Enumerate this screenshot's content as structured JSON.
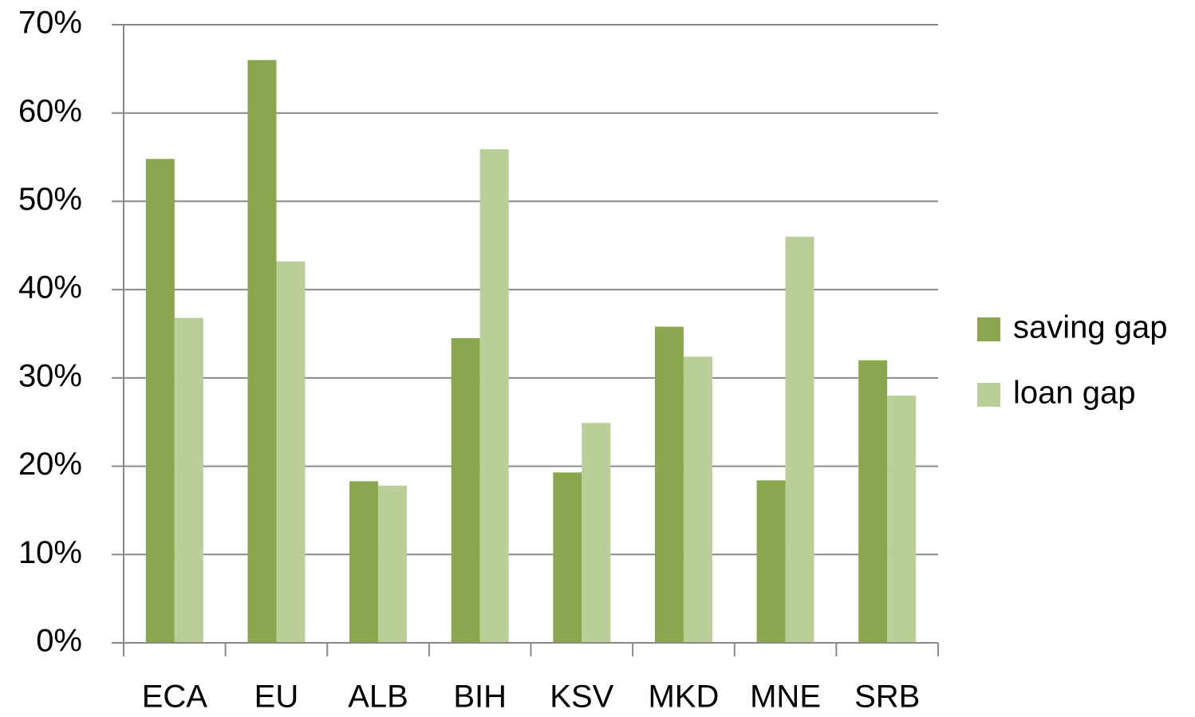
{
  "chart_data": {
    "type": "bar",
    "categories": [
      "ECA",
      "EU",
      "ALB",
      "BIH",
      "KSV",
      "MKD",
      "MNE",
      "SRB"
    ],
    "series": [
      {
        "name": "saving gap",
        "color": "#8aa64e",
        "values": [
          54.8,
          66.0,
          18.3,
          34.5,
          19.3,
          35.8,
          18.4,
          32.0
        ]
      },
      {
        "name": "loan gap",
        "color": "#bacf98",
        "values": [
          36.8,
          43.2,
          17.8,
          55.9,
          24.9,
          32.4,
          46.0,
          28.0
        ]
      }
    ],
    "ylim": [
      0,
      70
    ],
    "yticks": [
      {
        "value": 0,
        "label": "0%"
      },
      {
        "value": 10,
        "label": "10%"
      },
      {
        "value": 20,
        "label": "20%"
      },
      {
        "value": 30,
        "label": "30%"
      },
      {
        "value": 40,
        "label": "40%"
      },
      {
        "value": 50,
        "label": "50%"
      },
      {
        "value": 60,
        "label": "60%"
      },
      {
        "value": 70,
        "label": "70%"
      }
    ],
    "grid": true,
    "legend": "right"
  }
}
